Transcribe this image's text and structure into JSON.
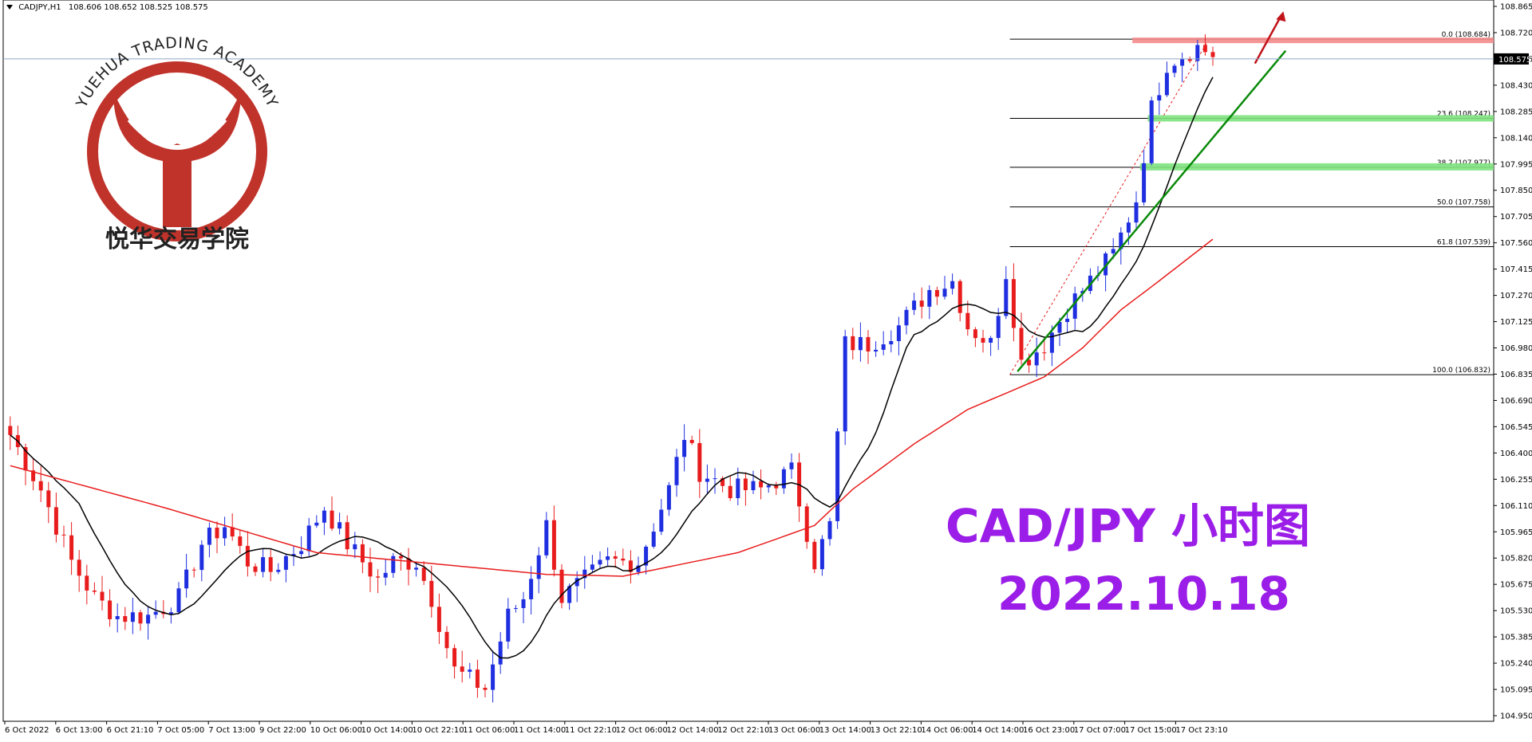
{
  "header": {
    "symbol": "CADJPY,H1",
    "ohlc": "108.606 108.652 108.525 108.575"
  },
  "logo": {
    "text_en": "YUEHUA TRADING ACADEMY",
    "text_cn": "悦华交易学院"
  },
  "annotation": {
    "title": "CAD/JPY 小时图",
    "date": "2022.10.18",
    "color": "#9b1de8"
  },
  "current_price": "108.575",
  "colors": {
    "up": "#1f2fe0",
    "down": "#e81c1c",
    "ma_fast": "#000000",
    "ma_slow": "#e81c1c",
    "trend": "#0a8a0a",
    "zone_red": "#f48b8b",
    "zone_green": "#7ee27e",
    "arrow": "#c0141a"
  },
  "chart_data": {
    "type": "candlestick",
    "y_axis_ticks": [
      "108.865",
      "108.720",
      "108.575",
      "108.430",
      "108.285",
      "108.140",
      "107.995",
      "107.850",
      "107.705",
      "107.560",
      "107.415",
      "107.270",
      "107.125",
      "106.980",
      "106.835",
      "106.690",
      "106.545",
      "106.400",
      "106.255",
      "106.110",
      "105.965",
      "105.820",
      "105.675",
      "105.530",
      "105.385",
      "105.240",
      "105.095",
      "104.950"
    ],
    "ylim": [
      104.95,
      108.865
    ],
    "x_axis_labels": [
      "6 Oct 2022",
      "6 Oct 13:00",
      "6 Oct 21:10",
      "7 Oct 05:00",
      "7 Oct 13:00",
      "9 Oct 22:00",
      "10 Oct 06:00",
      "10 Oct 14:00",
      "10 Oct 22:10",
      "11 Oct 06:00",
      "11 Oct 14:00",
      "11 Oct 22:10",
      "12 Oct 06:00",
      "12 Oct 14:00",
      "12 Oct 22:10",
      "13 Oct 06:00",
      "13 Oct 14:00",
      "13 Oct 22:10",
      "14 Oct 06:00",
      "14 Oct 14:00",
      "16 Oct 23:00",
      "17 Oct 07:00",
      "17 Oct 15:00",
      "17 Oct 23:10"
    ],
    "fibonacci": [
      {
        "label": "0.0 (108.684)",
        "price": 108.684
      },
      {
        "label": "23.6 (108.247)",
        "price": 108.247
      },
      {
        "label": "38.2 (107.977)",
        "price": 107.977
      },
      {
        "label": "50.0 (107.758)",
        "price": 107.758
      },
      {
        "label": "61.8 (107.539)",
        "price": 107.539
      },
      {
        "label": "100.0 (106.832)",
        "price": 106.832
      }
    ],
    "anchors": [
      [
        0,
        106.5
      ],
      [
        4,
        106.2
      ],
      [
        8,
        105.8
      ],
      [
        11,
        105.6
      ],
      [
        14,
        105.5
      ],
      [
        18,
        105.5
      ],
      [
        22,
        105.6
      ],
      [
        25,
        105.9
      ],
      [
        28,
        106.0
      ],
      [
        31,
        105.8
      ],
      [
        34,
        105.75
      ],
      [
        38,
        105.9
      ],
      [
        41,
        106.1
      ],
      [
        44,
        105.9
      ],
      [
        48,
        105.7
      ],
      [
        50,
        105.8
      ],
      [
        53,
        105.8
      ],
      [
        55,
        105.6
      ],
      [
        58,
        105.2
      ],
      [
        62,
        105.1
      ],
      [
        65,
        105.5
      ],
      [
        67,
        105.6
      ],
      [
        70,
        106.0
      ],
      [
        72,
        105.6
      ],
      [
        75,
        105.7
      ],
      [
        78,
        105.8
      ],
      [
        82,
        105.8
      ],
      [
        86,
        106.2
      ],
      [
        88,
        106.5
      ],
      [
        90,
        106.3
      ],
      [
        94,
        106.2
      ],
      [
        98,
        106.2
      ],
      [
        102,
        106.3
      ],
      [
        105,
        105.8
      ],
      [
        107,
        106.0
      ],
      [
        109,
        107.0
      ],
      [
        112,
        107.0
      ],
      [
        116,
        107.1
      ],
      [
        120,
        107.3
      ],
      [
        123,
        107.35
      ],
      [
        125,
        107.1
      ],
      [
        128,
        107.0
      ],
      [
        130,
        107.4
      ],
      [
        132,
        106.9
      ],
      [
        135,
        107.0
      ],
      [
        138,
        107.2
      ],
      [
        141,
        107.35
      ],
      [
        144,
        107.5
      ],
      [
        147,
        107.8
      ],
      [
        149,
        108.3
      ],
      [
        151,
        108.55
      ],
      [
        153,
        108.6
      ],
      [
        155,
        108.64
      ],
      [
        157,
        108.6
      ]
    ],
    "ma_slow": [
      [
        0,
        106.33
      ],
      [
        20,
        106.1
      ],
      [
        40,
        105.85
      ],
      [
        55,
        105.79
      ],
      [
        70,
        105.73
      ],
      [
        80,
        105.72
      ],
      [
        95,
        105.85
      ],
      [
        105,
        106.0
      ],
      [
        110,
        106.2
      ],
      [
        118,
        106.45
      ],
      [
        125,
        106.64
      ],
      [
        130,
        106.73
      ],
      [
        135,
        106.82
      ],
      [
        140,
        106.98
      ],
      [
        145,
        107.19
      ],
      [
        150,
        107.35
      ],
      [
        157,
        107.58
      ]
    ],
    "trend_lines": [
      {
        "from": [
          131,
          106.85
        ],
        "to": [
          167,
          108.62
        ]
      },
      {
        "from": [
          147,
          108.26
        ],
        "to": [
          200,
          108.26
        ]
      }
    ]
  }
}
